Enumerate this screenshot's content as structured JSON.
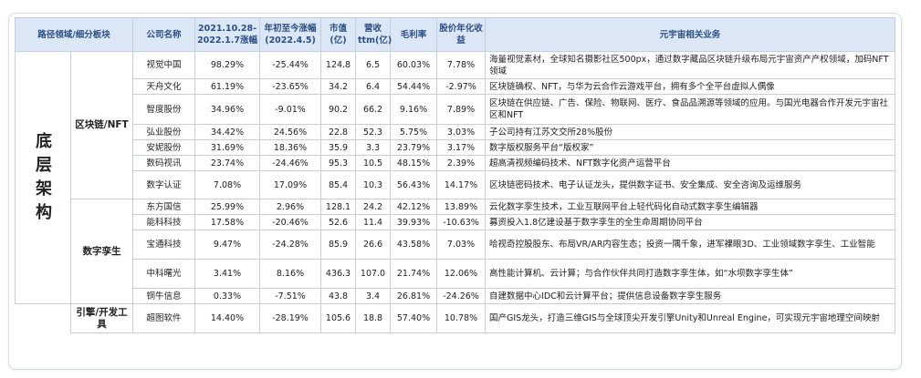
{
  "headers": [
    "路径领域/细分板块",
    "公司名称",
    "2021.10.28-2022.1.7涨幅",
    "年初至今涨幅(2022.4.5)",
    "市值(亿)",
    "营收ttm(亿)",
    "毛利率",
    "股价年化收益",
    "元宇宙相关业务"
  ],
  "category": "底层架构",
  "subcategories": [
    "区块链/NFT",
    "数字孪生",
    "引擎/开发工具"
  ],
  "rows": [
    {
      "name": "视觉中国",
      "change1": "98.29%",
      "change2": "-25.44%",
      "cap": "124.8",
      "rev": "6.5",
      "margin": "60.03%",
      "annual": "7.78%",
      "business": "海量视觉素材，全球知名摄影社区500px，通过数字藏品区块链升级布局元宇宙资产产权领域，加码NFT领域"
    },
    {
      "name": "天舟文化",
      "change1": "61.19%",
      "change2": "-23.65%",
      "cap": "34.2",
      "rev": "6.4",
      "margin": "54.44%",
      "annual": "-2.97%",
      "business": "区块链确权、NFT，与华为云合作云游戏平台，拥有多个全平台虚拟人偶像"
    },
    {
      "name": "智度股份",
      "change1": "34.96%",
      "change2": "-9.01%",
      "cap": "90.2",
      "rev": "66.2",
      "margin": "9.16%",
      "annual": "7.89%",
      "business": "区块链在供应链、广告、保险、物联网、医疗、食品品溯源等领域的应用。与国光电器合作开发元宇宙社区和NFT"
    },
    {
      "name": "弘业股份",
      "change1": "34.42%",
      "change2": "24.56%",
      "cap": "22.8",
      "rev": "52.3",
      "margin": "5.75%",
      "annual": "3.03%",
      "business": "子公司持有江苏文交所28%股份"
    },
    {
      "name": "安妮股份",
      "change1": "31.69%",
      "change2": "18.36%",
      "cap": "35.9",
      "rev": "3.3",
      "margin": "23.79%",
      "annual": "3.17%",
      "business": "数字版权服务平台“版权家”"
    },
    {
      "name": "数码视讯",
      "change1": "23.74%",
      "change2": "-24.46%",
      "cap": "95.3",
      "rev": "10.5",
      "margin": "48.15%",
      "annual": "2.39%",
      "business": "超高清视频编码技术、NFT数字化资产运营平台"
    },
    {
      "name": "数字认证",
      "change1": "7.08%",
      "change2": "17.09%",
      "cap": "85.4",
      "rev": "10.3",
      "margin": "56.43%",
      "annual": "14.17%",
      "business": "区块链密码技术、电子认证龙头，提供数字证书、安全集成、安全咨询及运维服务"
    },
    {
      "name": "东方国信",
      "change1": "25.99%",
      "change2": "2.96%",
      "cap": "128.1",
      "rev": "24.2",
      "margin": "42.12%",
      "annual": "13.89%",
      "business": "云化数字孪生技术，工业互联网平台上轻代码化自动式数字孪生编辑器"
    },
    {
      "name": "能科科技",
      "change1": "17.58%",
      "change2": "-20.46%",
      "cap": "52.6",
      "rev": "11.4",
      "margin": "39.93%",
      "annual": "-10.63%",
      "business": "募资投入1.8亿建设基于数字孪生的全生命周期协同平台"
    },
    {
      "name": "宝通科技",
      "change1": "9.47%",
      "change2": "-24.28%",
      "cap": "85.9",
      "rev": "26.6",
      "margin": "43.58%",
      "annual": "7.03%",
      "business": "哈视奇控股股东、布局VR/AR内容生态；投资一隅千象，进军裸眼3D、工业领域数字孪生、工业智能"
    },
    {
      "name": "中科曙光",
      "change1": "3.41%",
      "change2": "8.16%",
      "cap": "436.3",
      "rev": "107.0",
      "margin": "21.74%",
      "annual": "12.06%",
      "business": "高性能计算机、云计算；与合作伙伴共同打造数字孪生体，如“水坝数字孪生体”"
    },
    {
      "name": "铜牛信息",
      "change1": "0.33%",
      "change2": "-7.51%",
      "cap": "43.8",
      "rev": "3.4",
      "margin": "26.81%",
      "annual": "-24.26%",
      "business": "自建数据中心IDC和云计算平台；提供信息设备数字孪生服务"
    },
    {
      "name": "超图软件",
      "change1": "14.40%",
      "change2": "-28.19%",
      "cap": "105.6",
      "rev": "18.8",
      "margin": "57.40%",
      "annual": "10.78%",
      "business": "国产GIS龙头，打造三维GIS与全球顶尖开发引擎Unity和Unreal Engine，可实现元宇宙地理空间映射"
    }
  ]
}
